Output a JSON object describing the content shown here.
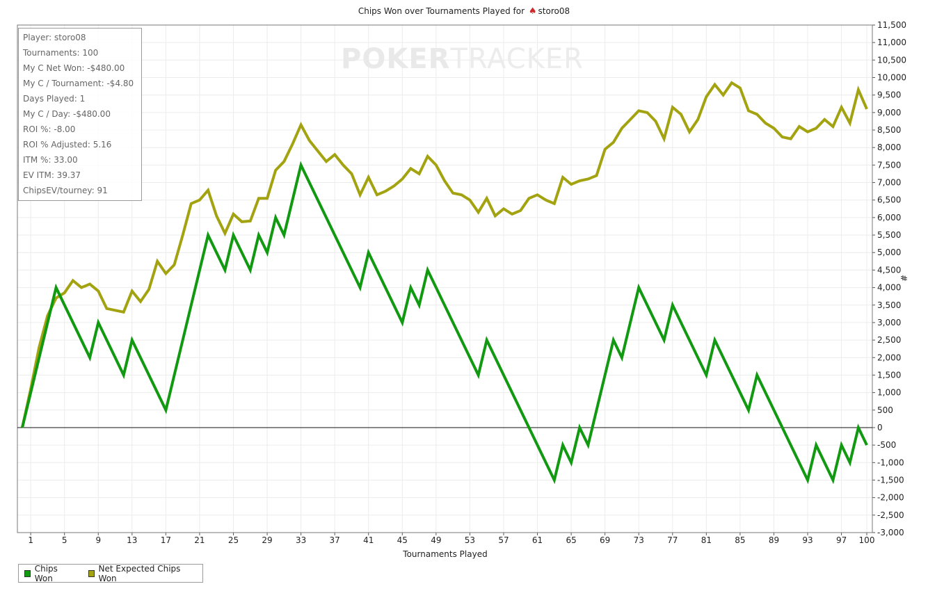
{
  "title": {
    "prefix": "Chips Won over Tournaments Played for",
    "spade_icon": "spade-icon",
    "player": "storo08"
  },
  "watermark": {
    "bold": "POKER",
    "thin": "TRACKER"
  },
  "stats": [
    "Player: storo08",
    "Tournaments: 100",
    "My C Net Won: -$480.00",
    "My C / Tournament: -$4.80",
    "Days Played: 1",
    "My C / Day: -$480.00",
    "ROI %: -8.00",
    "ROI % Adjusted: 5.16",
    "ITM %: 33.00",
    "EV ITM: 39.37",
    "ChipsEV/tourney: 91"
  ],
  "legend": [
    {
      "label": "Chips Won",
      "color": "#119911"
    },
    {
      "label": "Net Expected Chips Won",
      "color": "#a3a311"
    }
  ],
  "chart_data": {
    "type": "line",
    "xlabel": "Tournaments Played",
    "ylabel": "#",
    "xlim": [
      0,
      100
    ],
    "ylim": [
      -3000,
      11500
    ],
    "x_ticks": [
      1,
      5,
      9,
      13,
      17,
      21,
      25,
      29,
      33,
      37,
      41,
      45,
      49,
      53,
      57,
      61,
      65,
      69,
      73,
      77,
      81,
      85,
      89,
      93,
      97,
      100
    ],
    "y_ticks": [
      -3000,
      -2500,
      -2000,
      -1500,
      -1000,
      -500,
      0,
      500,
      1000,
      1500,
      2000,
      2500,
      3000,
      3500,
      4000,
      4500,
      5000,
      5500,
      6000,
      6500,
      7000,
      7500,
      8000,
      8500,
      9000,
      9500,
      10000,
      10500,
      11000,
      11500
    ],
    "y_tick_labels": [
      "-3,000",
      "-2,500",
      "-2,000",
      "-1,500",
      "-1,000",
      "-500",
      "0",
      "500",
      "1,000",
      "1,500",
      "2,000",
      "2,500",
      "3,000",
      "3,500",
      "4,000",
      "4,500",
      "5,000",
      "5,500",
      "6,000",
      "6,500",
      "7,000",
      "7,500",
      "8,000",
      "8,500",
      "9,000",
      "9,500",
      "10,000",
      "10,500",
      "11,000",
      "11,500"
    ],
    "grid": true,
    "legend_position": "bottom-left",
    "series": [
      {
        "name": "Chips Won",
        "color": "#119911",
        "points": [
          [
            0,
            0
          ],
          [
            4,
            4000
          ],
          [
            8,
            2000
          ],
          [
            9,
            3000
          ],
          [
            12,
            1500
          ],
          [
            13,
            2500
          ],
          [
            17,
            500
          ],
          [
            22,
            5500
          ],
          [
            24,
            4500
          ],
          [
            25,
            5500
          ],
          [
            27,
            4500
          ],
          [
            28,
            5500
          ],
          [
            29,
            5000
          ],
          [
            30,
            6000
          ],
          [
            31,
            5500
          ],
          [
            33,
            7500
          ],
          [
            40,
            4000
          ],
          [
            41,
            5000
          ],
          [
            45,
            3000
          ],
          [
            46,
            4000
          ],
          [
            47,
            3500
          ],
          [
            48,
            4500
          ],
          [
            54,
            1500
          ],
          [
            55,
            2500
          ],
          [
            63,
            -1500
          ],
          [
            64,
            -500
          ],
          [
            65,
            -1000
          ],
          [
            66,
            0
          ],
          [
            67,
            -500
          ],
          [
            70,
            2500
          ],
          [
            71,
            2000
          ],
          [
            73,
            4000
          ],
          [
            76,
            2500
          ],
          [
            77,
            3500
          ],
          [
            81,
            1500
          ],
          [
            82,
            2500
          ],
          [
            86,
            500
          ],
          [
            87,
            1500
          ],
          [
            93,
            -1500
          ],
          [
            94,
            -500
          ],
          [
            96,
            -1500
          ],
          [
            97,
            -500
          ],
          [
            98,
            -1000
          ],
          [
            99,
            0
          ],
          [
            100,
            -500
          ]
        ]
      },
      {
        "name": "Net Expected Chips Won",
        "color": "#a3a311",
        "points": [
          [
            0,
            0
          ],
          [
            1,
            1100
          ],
          [
            2,
            2300
          ],
          [
            3,
            3200
          ],
          [
            4,
            3700
          ],
          [
            5,
            3850
          ],
          [
            6,
            4200
          ],
          [
            7,
            4000
          ],
          [
            8,
            4100
          ],
          [
            9,
            3900
          ],
          [
            10,
            3400
          ],
          [
            11,
            3350
          ],
          [
            12,
            3300
          ],
          [
            13,
            3900
          ],
          [
            14,
            3600
          ],
          [
            15,
            3950
          ],
          [
            16,
            4750
          ],
          [
            17,
            4400
          ],
          [
            18,
            4650
          ],
          [
            19,
            5500
          ],
          [
            20,
            6400
          ],
          [
            21,
            6500
          ],
          [
            22,
            6780
          ],
          [
            23,
            6050
          ],
          [
            24,
            5550
          ],
          [
            25,
            6100
          ],
          [
            26,
            5880
          ],
          [
            27,
            5900
          ],
          [
            28,
            6550
          ],
          [
            29,
            6550
          ],
          [
            30,
            7350
          ],
          [
            31,
            7600
          ],
          [
            32,
            8100
          ],
          [
            33,
            8650
          ],
          [
            34,
            8200
          ],
          [
            35,
            7900
          ],
          [
            36,
            7600
          ],
          [
            37,
            7800
          ],
          [
            38,
            7500
          ],
          [
            39,
            7250
          ],
          [
            40,
            6650
          ],
          [
            41,
            7150
          ],
          [
            42,
            6650
          ],
          [
            43,
            6750
          ],
          [
            44,
            6900
          ],
          [
            45,
            7100
          ],
          [
            46,
            7400
          ],
          [
            47,
            7250
          ],
          [
            48,
            7750
          ],
          [
            49,
            7500
          ],
          [
            50,
            7050
          ],
          [
            51,
            6700
          ],
          [
            52,
            6650
          ],
          [
            53,
            6500
          ],
          [
            54,
            6150
          ],
          [
            55,
            6550
          ],
          [
            56,
            6050
          ],
          [
            57,
            6250
          ],
          [
            58,
            6100
          ],
          [
            59,
            6200
          ],
          [
            60,
            6550
          ],
          [
            61,
            6650
          ],
          [
            62,
            6500
          ],
          [
            63,
            6400
          ],
          [
            64,
            7150
          ],
          [
            65,
            6950
          ],
          [
            66,
            7050
          ],
          [
            67,
            7100
          ],
          [
            68,
            7200
          ],
          [
            69,
            7950
          ],
          [
            70,
            8150
          ],
          [
            71,
            8550
          ],
          [
            72,
            8800
          ],
          [
            73,
            9050
          ],
          [
            74,
            9000
          ],
          [
            75,
            8750
          ],
          [
            76,
            8250
          ],
          [
            77,
            9150
          ],
          [
            78,
            8950
          ],
          [
            79,
            8450
          ],
          [
            80,
            8800
          ],
          [
            81,
            9450
          ],
          [
            82,
            9800
          ],
          [
            83,
            9500
          ],
          [
            84,
            9850
          ],
          [
            85,
            9700
          ],
          [
            86,
            9050
          ],
          [
            87,
            8950
          ],
          [
            88,
            8700
          ],
          [
            89,
            8550
          ],
          [
            90,
            8300
          ],
          [
            91,
            8250
          ],
          [
            92,
            8600
          ],
          [
            93,
            8450
          ],
          [
            94,
            8550
          ],
          [
            95,
            8800
          ],
          [
            96,
            8600
          ],
          [
            97,
            9150
          ],
          [
            98,
            8700
          ],
          [
            99,
            9650
          ],
          [
            100,
            9100
          ]
        ]
      }
    ]
  }
}
